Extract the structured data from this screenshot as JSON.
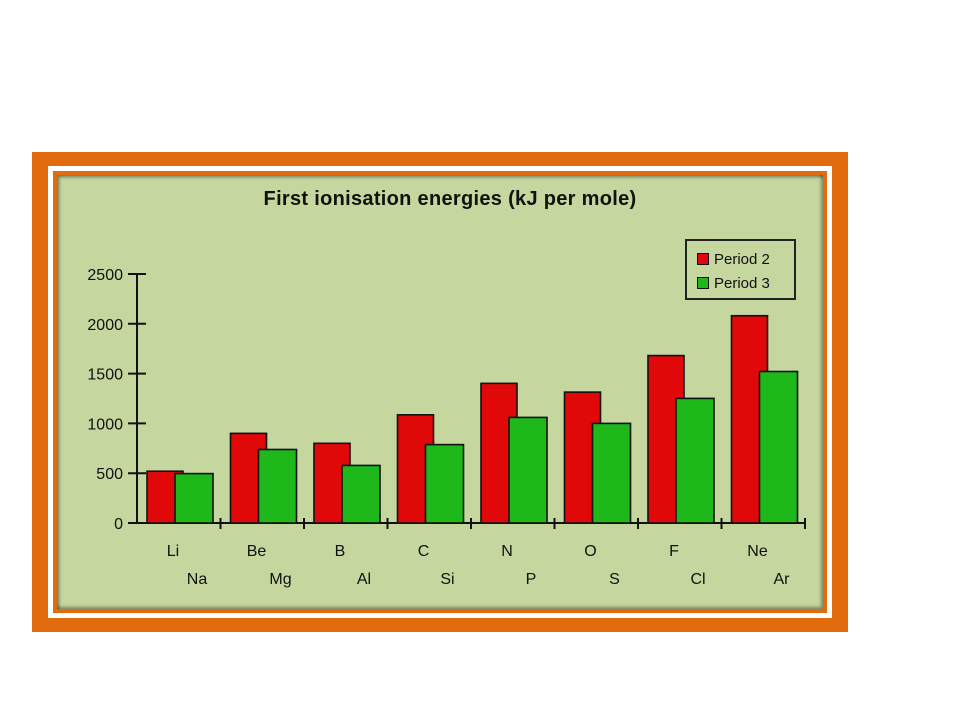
{
  "chart_data": {
    "type": "bar",
    "title": "First ionisation energies (kJ per mole)",
    "xlabel": "",
    "ylabel": "",
    "ylim": [
      0,
      2500
    ],
    "yticks": [
      0,
      500,
      1000,
      1500,
      2000,
      2500
    ],
    "grid": false,
    "legend_position": "top-right",
    "categories": [
      "Li / Na",
      "Be / Mg",
      "B / Al",
      "C / Si",
      "N / P",
      "O / S",
      "F / Cl",
      "Ne / Ar"
    ],
    "category_labels_top": [
      "Li",
      "Be",
      "B",
      "C",
      "N",
      "O",
      "F",
      "Ne"
    ],
    "category_labels_bottom": [
      "Na",
      "Mg",
      "Al",
      "Si",
      "P",
      "S",
      "Cl",
      "Ar"
    ],
    "series": [
      {
        "name": "Period 2",
        "color": "#e00808",
        "values": [
          520,
          900,
          800,
          1086,
          1402,
          1314,
          1681,
          2081
        ]
      },
      {
        "name": "Period 3",
        "color": "#1fb81a",
        "values": [
          496,
          738,
          578,
          787,
          1060,
          1000,
          1251,
          1521
        ]
      }
    ]
  },
  "legend": {
    "items": [
      {
        "label": "Period 2",
        "color": "#e00808"
      },
      {
        "label": "Period 3",
        "color": "#1fb81a"
      }
    ]
  },
  "frame": {
    "border_color": "#e26b0e",
    "panel_color": "#c5d69e"
  }
}
